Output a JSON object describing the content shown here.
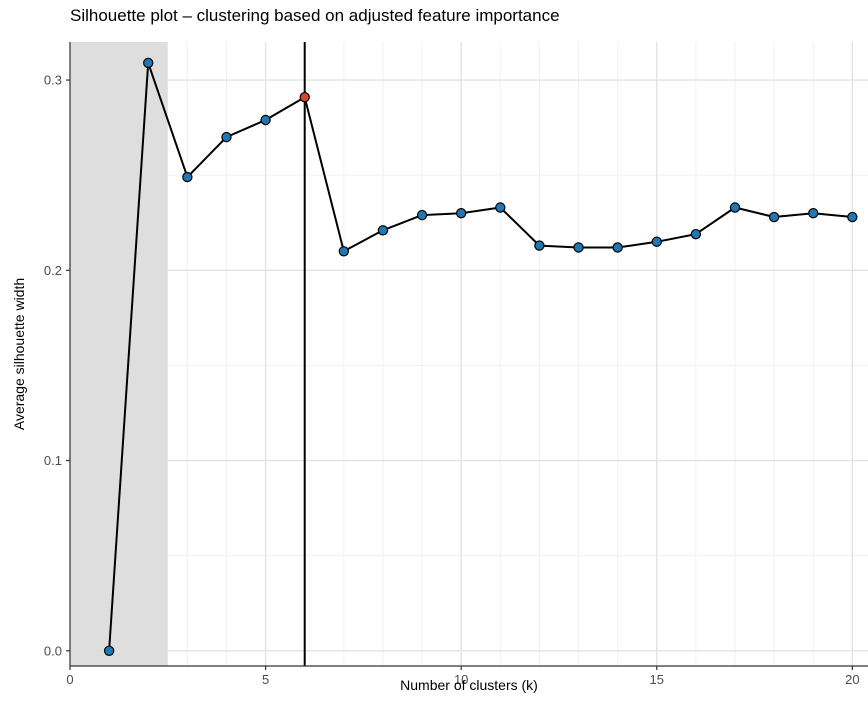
{
  "chart_data": {
    "type": "line",
    "title": "Silhouette plot – clustering based on adjusted feature importance",
    "xlabel": "Number of clusters (k)",
    "ylabel": "Average silhouette width",
    "xlim": [
      0,
      20.4
    ],
    "ylim": [
      -0.008,
      0.32
    ],
    "x_ticks": [
      0,
      5,
      10,
      15,
      20
    ],
    "x_tick_labels": [
      "0",
      "5",
      "10",
      "15",
      "20"
    ],
    "y_ticks": [
      0.0,
      0.1,
      0.2,
      0.3
    ],
    "y_tick_labels": [
      "0.0",
      "0.1",
      "0.2",
      "0.3"
    ],
    "grid": true,
    "legend": "none",
    "shaded_region": {
      "x_from": 0,
      "x_to": 2.5,
      "color": "#dcdcdc"
    },
    "vertical_line": {
      "x": 6,
      "color": "#000000"
    },
    "highlight_point": {
      "x": 6,
      "color": "#d9442c"
    },
    "point_color": "#1f78b4",
    "line_color": "#000000",
    "series": [
      {
        "x": [
          1,
          2,
          3,
          4,
          5,
          6,
          7,
          8,
          9,
          10,
          11,
          12,
          13,
          14,
          15,
          16,
          17,
          18,
          19,
          20
        ],
        "y": [
          0.0,
          0.309,
          0.249,
          0.27,
          0.279,
          0.291,
          0.21,
          0.221,
          0.229,
          0.23,
          0.233,
          0.213,
          0.212,
          0.212,
          0.215,
          0.219,
          0.233,
          0.228,
          0.23,
          0.228
        ]
      }
    ]
  }
}
